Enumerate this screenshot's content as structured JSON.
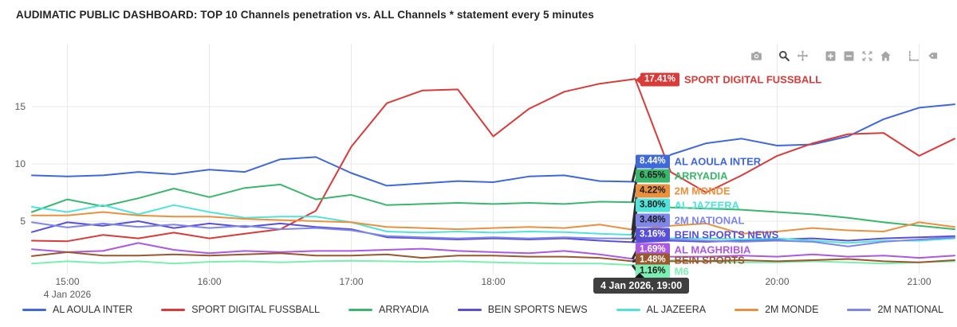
{
  "title": "AUDIMATIC PUBLIC DASHBOARD: TOP 10 Channels penetration vs. ALL Channels * statement every 5 minutes",
  "modebar": {
    "icons": [
      "download-plot-icon",
      "zoom-icon",
      "pan-icon",
      "zoom-in-icon",
      "zoom-out-icon",
      "autoscale-icon",
      "reset-axes-icon",
      "toggle-spikelines-icon",
      "hover-closest-icon"
    ],
    "active_icon": "zoom-icon"
  },
  "chart_data": {
    "type": "line",
    "x": [
      "14:45",
      "15:00",
      "15:15",
      "15:30",
      "15:45",
      "16:00",
      "16:15",
      "16:30",
      "16:45",
      "17:00",
      "17:15",
      "17:30",
      "17:45",
      "18:00",
      "18:15",
      "18:30",
      "18:45",
      "19:00",
      "19:15",
      "19:30",
      "19:45",
      "20:00",
      "20:15",
      "20:30",
      "20:45",
      "21:00",
      "21:15"
    ],
    "xticks": [
      "15:00",
      "16:00",
      "17:00",
      "18:00",
      "19:00",
      "20:00",
      "21:00"
    ],
    "x_date_label": "4 Jan 2026",
    "yticks": [
      5,
      10,
      15
    ],
    "ylim": [
      0,
      20
    ],
    "grid": true,
    "legend_position": "bottom",
    "hover": {
      "x": "19:00",
      "tooltip": "4 Jan 2026, 19:00"
    },
    "series": [
      {
        "name": "AL AOULA INTER",
        "color": "#3f68d9",
        "end_label": "8.44%",
        "badge_text": "#ffffff",
        "values": [
          9.0,
          8.9,
          9.0,
          9.3,
          9.1,
          9.5,
          9.3,
          10.4,
          10.6,
          9.2,
          8.1,
          8.3,
          8.5,
          8.4,
          8.9,
          9.0,
          8.5,
          8.44,
          10.8,
          11.8,
          12.2,
          11.6,
          11.7,
          12.4,
          13.9,
          14.9,
          15.2
        ]
      },
      {
        "name": "SPORT DIGITAL FUSSBALL",
        "color": "#d93b3b",
        "end_label": "17.41%",
        "badge_text": "#ffffff",
        "values": [
          3.3,
          3.25,
          3.8,
          3.5,
          4.0,
          3.5,
          3.9,
          4.3,
          5.9,
          11.5,
          15.3,
          16.4,
          16.5,
          12.4,
          14.8,
          16.3,
          17.0,
          17.41,
          9.3,
          7.5,
          9.0,
          10.7,
          11.8,
          12.6,
          12.7,
          10.7,
          12.2
        ]
      },
      {
        "name": "ARRYADIA",
        "color": "#3bb66d",
        "end_label": "6.65%",
        "badge_text": "#1a1a1a",
        "values": [
          5.8,
          6.9,
          6.3,
          7.0,
          7.85,
          7.1,
          7.9,
          8.2,
          6.9,
          7.3,
          6.4,
          6.5,
          6.6,
          6.5,
          6.6,
          6.5,
          6.7,
          6.65,
          6.2,
          6.1,
          6.0,
          5.8,
          5.6,
          5.3,
          4.9,
          4.6,
          4.3
        ]
      },
      {
        "name": "BEIN SPORTS NEWS",
        "color": "#5a50d8",
        "end_label": "3.16%",
        "badge_text": "#ffffff",
        "values": [
          4.05,
          4.9,
          4.6,
          5.0,
          4.4,
          4.8,
          4.5,
          4.8,
          4.5,
          4.3,
          3.6,
          3.5,
          3.4,
          3.5,
          3.4,
          3.5,
          3.3,
          3.16,
          3.3,
          3.2,
          3.3,
          3.4,
          3.5,
          3.3,
          3.5,
          3.6,
          3.7
        ]
      },
      {
        "name": "AL JAZEERA",
        "color": "#4fe3da",
        "end_label": "3.80%",
        "badge_text": "#1a1a1a",
        "values": [
          6.25,
          5.8,
          6.4,
          5.6,
          6.4,
          5.8,
          5.3,
          5.4,
          5.4,
          4.9,
          4.1,
          4.0,
          4.1,
          4.0,
          4.1,
          4.05,
          3.9,
          3.8,
          3.5,
          3.5,
          3.4,
          3.5,
          3.3,
          3.1,
          3.3,
          3.3,
          3.5
        ]
      },
      {
        "name": "2M MONDE",
        "color": "#e9913e",
        "end_label": "4.22%",
        "badge_text": "#1a1a1a",
        "values": [
          5.5,
          5.5,
          5.8,
          5.5,
          5.4,
          5.4,
          5.2,
          5.1,
          5.0,
          4.9,
          4.5,
          4.4,
          4.3,
          4.4,
          4.5,
          4.4,
          4.7,
          4.22,
          4.6,
          4.8,
          3.9,
          4.1,
          4.4,
          4.2,
          4.1,
          4.9,
          4.5
        ]
      },
      {
        "name": "2M NATIONAL",
        "color": "#7e87e8",
        "end_label": "3.48%",
        "badge_text": "#1a1a1a",
        "values": [
          4.9,
          4.45,
          4.8,
          4.5,
          4.7,
          4.4,
          4.6,
          4.3,
          4.4,
          4.2,
          3.7,
          3.6,
          3.5,
          3.6,
          3.5,
          3.6,
          3.5,
          3.48,
          3.4,
          3.3,
          3.2,
          3.3,
          3.2,
          2.8,
          3.2,
          3.4,
          3.6
        ]
      },
      {
        "name": "AL MAGHRIBIA",
        "color": "#ad58e3",
        "end_label": "1.69%",
        "badge_text": "#ffffff",
        "values": [
          2.55,
          2.3,
          2.4,
          3.1,
          2.5,
          2.2,
          2.4,
          2.3,
          2.4,
          2.4,
          2.5,
          2.6,
          2.4,
          2.3,
          2.2,
          2.4,
          2.1,
          1.69,
          1.9,
          1.9,
          2.0,
          1.9,
          2.1,
          1.9,
          2.0,
          1.8,
          2.0
        ]
      },
      {
        "name": "M6",
        "color": "#7beeb1",
        "end_label": "1.16%",
        "badge_text": "#1a1a1a",
        "values": [
          1.3,
          1.5,
          1.35,
          1.5,
          1.3,
          1.45,
          1.5,
          1.4,
          1.5,
          1.55,
          1.5,
          1.45,
          1.5,
          1.4,
          1.35,
          1.3,
          1.3,
          1.16,
          1.6,
          1.5,
          1.4,
          1.4,
          1.5,
          1.4,
          1.3,
          1.4,
          1.5
        ]
      },
      {
        "name": "BEIN SPORTS",
        "color": "#99582d",
        "end_label": "1.48%",
        "badge_text": "#ffffff",
        "values": [
          1.95,
          2.3,
          2.0,
          2.0,
          2.1,
          2.0,
          2.1,
          2.2,
          2.0,
          2.0,
          2.1,
          1.8,
          2.0,
          2.0,
          1.9,
          1.9,
          1.8,
          1.48,
          1.5,
          1.5,
          1.6,
          1.5,
          1.6,
          1.7,
          1.5,
          1.4,
          1.6
        ]
      }
    ]
  }
}
